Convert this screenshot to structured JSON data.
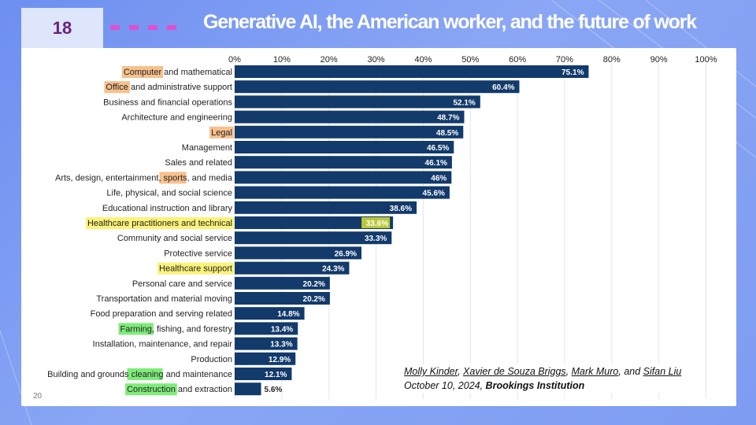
{
  "slide": {
    "number": "18",
    "title": "Generative AI, the American worker, and the future of work"
  },
  "citation": {
    "authors": [
      "Molly Kinder",
      "Xavier de Souza Briggs",
      "Mark Muro",
      "Sifan Liu"
    ],
    "sep1": ", ",
    "sep2": ", ",
    "sep3": ", and ",
    "date": "October 10, 2024, ",
    "source": "Brookings Institution"
  },
  "page_mark": "20",
  "colors": {
    "bar": "#123a6b",
    "grid": "#e2e6ee",
    "label_text": "#222222",
    "highlight_orange": "#f7c08c",
    "highlight_yellow": "#fbf27a",
    "highlight_green": "#7fec7a",
    "highlight_olive": "#b9c83a"
  },
  "chart_data": {
    "type": "bar",
    "orientation": "horizontal",
    "title": "",
    "xlabel": "",
    "ylabel": "",
    "xlim": [
      0,
      100
    ],
    "tick_labels": [
      "0%",
      "10%",
      "20%",
      "30%",
      "40%",
      "50%",
      "60%",
      "70%",
      "80%",
      "90%",
      "100%"
    ],
    "tick_values": [
      0,
      10,
      20,
      30,
      40,
      50,
      60,
      70,
      80,
      90,
      100
    ],
    "grid": true,
    "legend": "none",
    "categories": [
      "Computer and mathematical",
      "Office and administrative support",
      "Business and financial operations",
      "Architecture and engineering",
      "Legal",
      "Management",
      "Sales and related",
      "Arts, design, entertainment, sports, and media",
      "Life, physical, and social science",
      "Educational instruction and library",
      "Healthcare practitioners and technical",
      "Community and social service",
      "Protective service",
      "Healthcare support",
      "Personal care and service",
      "Transportation and material moving",
      "Food preparation and serving related",
      "Farming, fishing, and forestry",
      "Installation, maintenance, and repair",
      "Production",
      "Building and grounds cleaning and maintenance",
      "Construction and extraction"
    ],
    "values": [
      75.1,
      60.4,
      52.1,
      48.7,
      48.5,
      46.5,
      46.1,
      46,
      45.6,
      38.6,
      33.6,
      33.3,
      26.9,
      24.3,
      20.2,
      20.2,
      14.8,
      13.4,
      13.3,
      12.9,
      12.1,
      5.6
    ],
    "value_labels": [
      "75.1%",
      "60.4%",
      "52.1%",
      "48.7%",
      "48.5%",
      "46.5%",
      "46.1%",
      "46%",
      "45.6%",
      "38.6%",
      "33.6%",
      "33.3%",
      "26.9%",
      "24.3%",
      "20.2%",
      "20.2%",
      "14.8%",
      "13.4%",
      "13.3%",
      "12.9%",
      "12.1%",
      "5.6%"
    ],
    "label_highlights": [
      {
        "row": 0,
        "text": "Computer",
        "color": "orange"
      },
      {
        "row": 1,
        "text": "Office",
        "color": "orange"
      },
      {
        "row": 4,
        "text": "Legal",
        "color": "orange"
      },
      {
        "row": 7,
        "text": "sports",
        "color": "orange"
      },
      {
        "row": 10,
        "text": "Healthcare practitioners and technical",
        "color": "yellow"
      },
      {
        "row": 13,
        "text": "Healthcare support",
        "color": "yellow"
      },
      {
        "row": 17,
        "text": "Farming",
        "color": "green"
      },
      {
        "row": 20,
        "text": "cleaning",
        "color": "green"
      },
      {
        "row": 21,
        "text": "Construction",
        "color": "green"
      }
    ],
    "value_highlights": [
      {
        "row": 10,
        "color": "olive"
      }
    ]
  }
}
